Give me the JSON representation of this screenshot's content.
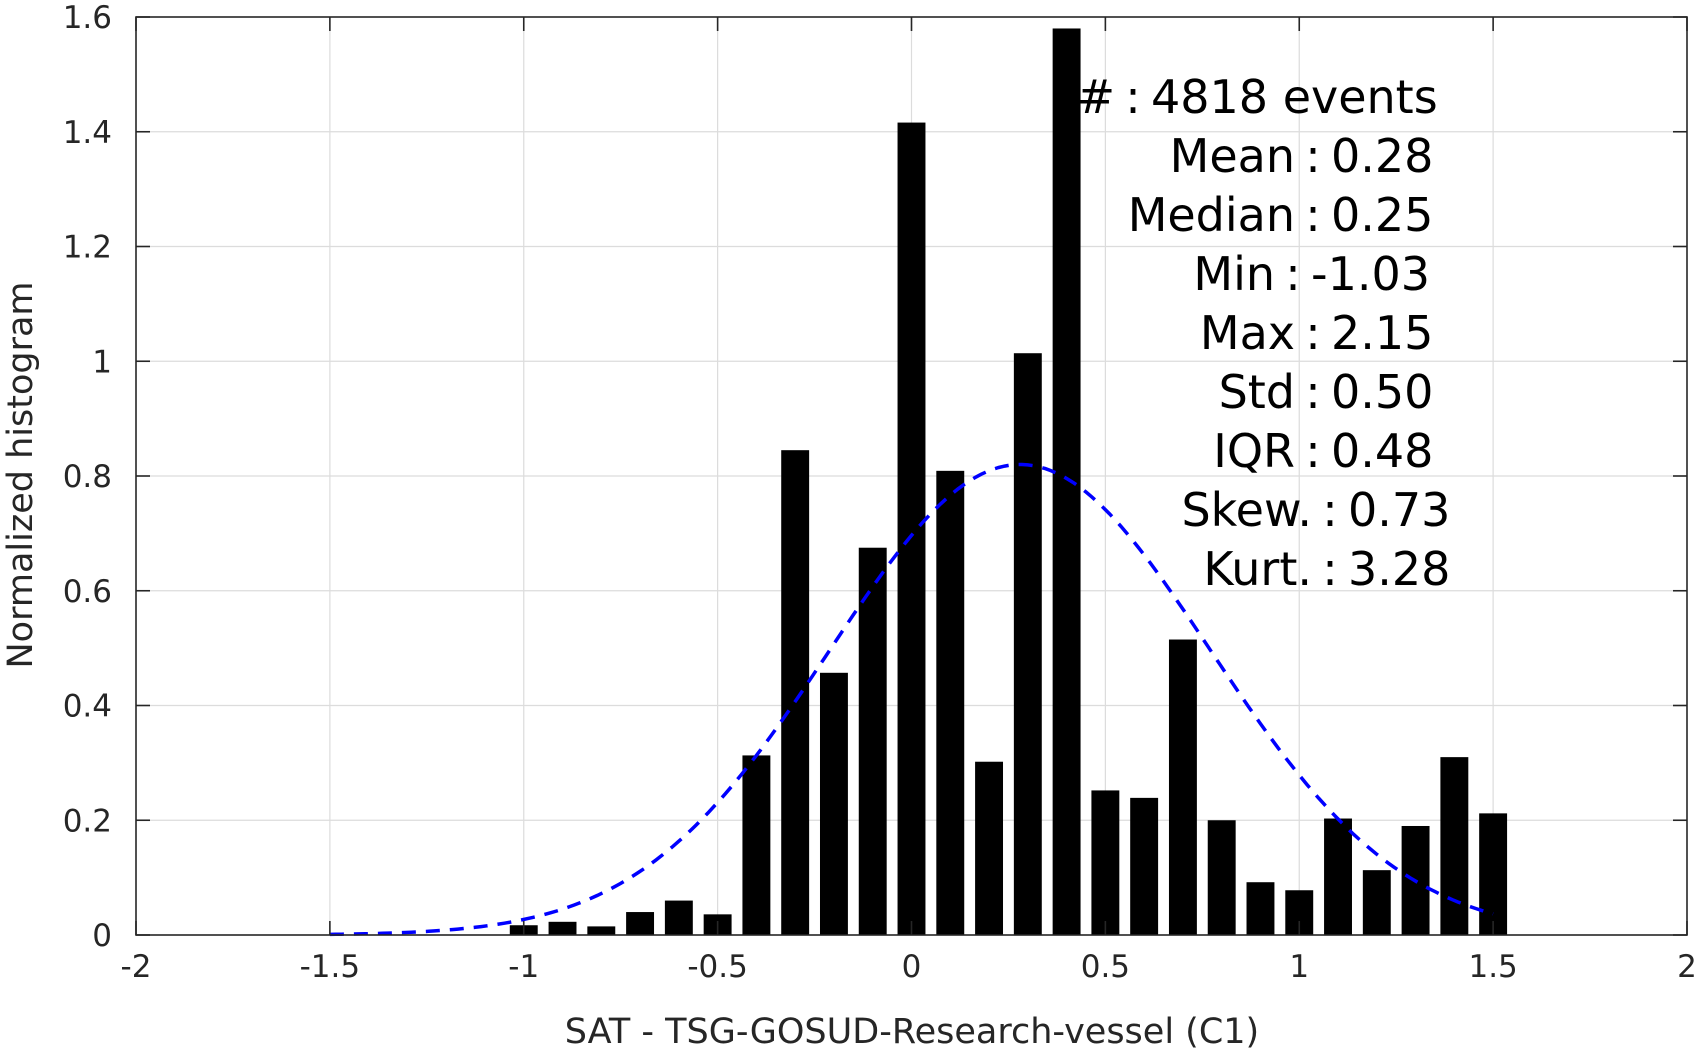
{
  "chart_data": {
    "type": "bar",
    "title": "",
    "xlabel": "SAT - TSG-GOSUD-Research-vessel (C1)",
    "ylabel": "Normalized histogram",
    "xlim": [
      -2,
      2
    ],
    "ylim": [
      0,
      1.6
    ],
    "xticks": [
      -2,
      -1.5,
      -1,
      -0.5,
      0,
      0.5,
      1,
      1.5,
      2
    ],
    "xtick_labels": [
      "-2",
      "-1.5",
      "-1",
      "-0.5",
      "0",
      "0.5",
      "1",
      "1.5",
      "2"
    ],
    "yticks": [
      0,
      0.2,
      0.4,
      0.6,
      0.8,
      1,
      1.2,
      1.4,
      1.6
    ],
    "ytick_labels": [
      "0",
      "0.2",
      "0.4",
      "0.6",
      "0.8",
      "1",
      "1.2",
      "1.4",
      "1.6"
    ],
    "grid": true,
    "bar_color": "#000000",
    "bin_width": 0.1,
    "bins": [
      {
        "x": -1.0,
        "y": 0.017
      },
      {
        "x": -0.9,
        "y": 0.023
      },
      {
        "x": -0.8,
        "y": 0.015
      },
      {
        "x": -0.7,
        "y": 0.04
      },
      {
        "x": -0.6,
        "y": 0.06
      },
      {
        "x": -0.5,
        "y": 0.036
      },
      {
        "x": -0.4,
        "y": 0.313
      },
      {
        "x": -0.3,
        "y": 0.845
      },
      {
        "x": -0.2,
        "y": 0.457
      },
      {
        "x": -0.1,
        "y": 0.675
      },
      {
        "x": 0.0,
        "y": 1.416
      },
      {
        "x": 0.1,
        "y": 0.809
      },
      {
        "x": 0.2,
        "y": 0.302
      },
      {
        "x": 0.3,
        "y": 1.014
      },
      {
        "x": 0.4,
        "y": 1.58
      },
      {
        "x": 0.5,
        "y": 0.252
      },
      {
        "x": 0.6,
        "y": 0.239
      },
      {
        "x": 0.7,
        "y": 0.515
      },
      {
        "x": 0.8,
        "y": 0.2
      },
      {
        "x": 0.9,
        "y": 0.092
      },
      {
        "x": 1.0,
        "y": 0.078
      },
      {
        "x": 1.1,
        "y": 0.203
      },
      {
        "x": 1.2,
        "y": 0.113
      },
      {
        "x": 1.3,
        "y": 0.19
      },
      {
        "x": 1.4,
        "y": 0.31
      },
      {
        "x": 1.5,
        "y": 0.212
      }
    ],
    "fit": {
      "type": "gaussian",
      "color": "#0000ff",
      "style": "dashed",
      "mean": 0.28,
      "std": 0.49,
      "peak": 0.82,
      "range": [
        -1.5,
        1.5
      ]
    }
  },
  "stats": [
    {
      "label": "#",
      "value": "4818 events"
    },
    {
      "label": "Mean",
      "value": "0.28"
    },
    {
      "label": "Median",
      "value": "0.25"
    },
    {
      "label": "Min",
      "value": "-1.03"
    },
    {
      "label": "Max",
      "value": "2.15"
    },
    {
      "label": "Std",
      "value": "0.50"
    },
    {
      "label": "IQR",
      "value": "0.48"
    },
    {
      "label": "Skew.",
      "value": "0.73"
    },
    {
      "label": "Kurt.",
      "value": "3.28"
    }
  ]
}
